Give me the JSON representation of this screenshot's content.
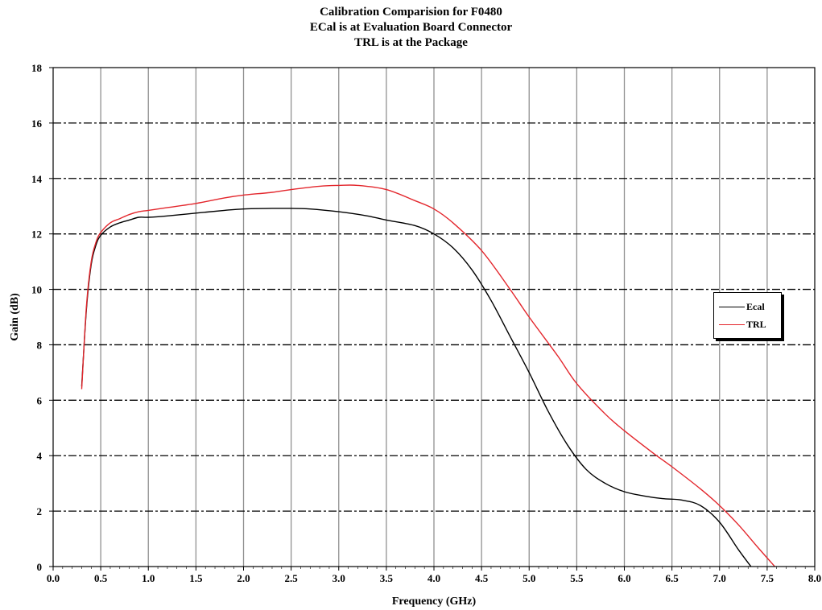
{
  "chart_data": {
    "type": "line",
    "title": [
      "Calibration Comparision for F0480",
      "ECal is at Evaluation Board Connector",
      "TRL is at the Package"
    ],
    "xlabel": "Frequency (GHz)",
    "ylabel": "Gain (dB)",
    "xlim": [
      0,
      8
    ],
    "ylim": [
      0,
      18
    ],
    "xticks": [
      "0.0",
      "0.5",
      "1.0",
      "1.5",
      "2.0",
      "2.5",
      "3.0",
      "3.5",
      "4.0",
      "4.5",
      "5.0",
      "5.5",
      "6.0",
      "6.5",
      "7.0",
      "7.5",
      "8.0"
    ],
    "yticks": [
      "0",
      "2",
      "4",
      "6",
      "8",
      "10",
      "12",
      "14",
      "16",
      "18"
    ],
    "grid": {
      "vertical": "solid",
      "horizontal": "dashed"
    },
    "legend": "right",
    "series": [
      {
        "name": "Ecal",
        "color": "#000000",
        "x": [
          0.3,
          0.35,
          0.4,
          0.45,
          0.5,
          0.6,
          0.7,
          0.8,
          0.9,
          1.0,
          1.2,
          1.5,
          1.8,
          2.0,
          2.3,
          2.5,
          2.7,
          3.0,
          3.3,
          3.5,
          3.8,
          4.0,
          4.2,
          4.4,
          4.6,
          4.8,
          5.0,
          5.2,
          5.4,
          5.6,
          5.8,
          6.0,
          6.2,
          6.4,
          6.6,
          6.8,
          7.0,
          7.2,
          7.33
        ],
        "y": [
          6.5,
          9.3,
          10.9,
          11.6,
          11.95,
          12.25,
          12.4,
          12.5,
          12.6,
          12.6,
          12.65,
          12.75,
          12.85,
          12.9,
          12.92,
          12.92,
          12.9,
          12.8,
          12.65,
          12.5,
          12.3,
          12.0,
          11.5,
          10.7,
          9.6,
          8.3,
          7.0,
          5.6,
          4.4,
          3.5,
          3.0,
          2.7,
          2.55,
          2.45,
          2.4,
          2.2,
          1.6,
          0.6,
          0.0
        ]
      },
      {
        "name": "TRL",
        "color": "#e3262c",
        "x": [
          0.3,
          0.35,
          0.4,
          0.45,
          0.5,
          0.6,
          0.7,
          0.8,
          0.9,
          1.0,
          1.2,
          1.5,
          1.8,
          2.0,
          2.3,
          2.5,
          2.8,
          3.0,
          3.2,
          3.5,
          3.8,
          4.0,
          4.2,
          4.5,
          4.8,
          5.0,
          5.3,
          5.5,
          5.8,
          6.0,
          6.3,
          6.5,
          6.8,
          7.0,
          7.2,
          7.4,
          7.58
        ],
        "y": [
          6.4,
          9.4,
          11.0,
          11.7,
          12.05,
          12.4,
          12.55,
          12.7,
          12.8,
          12.85,
          12.95,
          13.1,
          13.3,
          13.4,
          13.5,
          13.6,
          13.72,
          13.75,
          13.75,
          13.6,
          13.2,
          12.9,
          12.4,
          11.4,
          10.0,
          9.0,
          7.6,
          6.6,
          5.5,
          4.9,
          4.1,
          3.6,
          2.8,
          2.2,
          1.5,
          0.7,
          0.0
        ]
      }
    ]
  }
}
